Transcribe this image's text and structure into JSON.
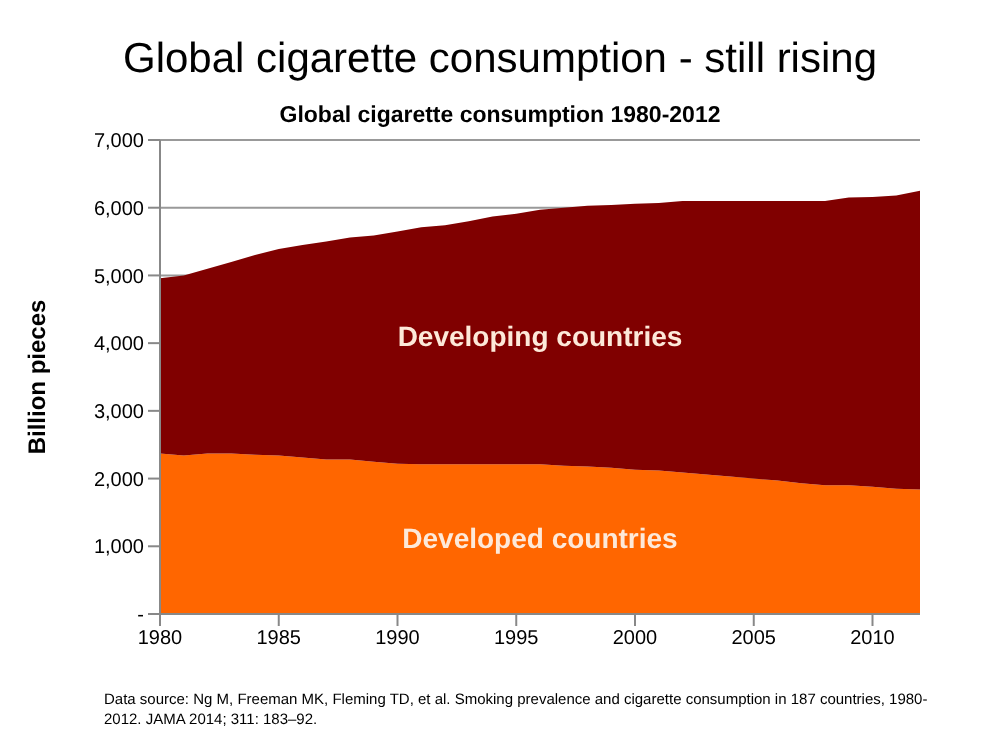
{
  "chart_data": {
    "type": "area",
    "title": "Global cigarette consumption - still rising",
    "subtitle": "Global cigarette consumption 1980-2012",
    "ylabel": "Billion pieces",
    "stacked": true,
    "legend": false,
    "grid": "y",
    "x": [
      1980,
      1981,
      1982,
      1983,
      1984,
      1985,
      1986,
      1987,
      1988,
      1989,
      1990,
      1991,
      1992,
      1993,
      1994,
      1995,
      1996,
      1997,
      1998,
      1999,
      2000,
      2001,
      2002,
      2003,
      2004,
      2005,
      2006,
      2007,
      2008,
      2009,
      2010,
      2011,
      2012
    ],
    "xlim": [
      1980,
      2012
    ],
    "xticks": [
      1980,
      1985,
      1990,
      1995,
      2000,
      2005,
      2010
    ],
    "ylim": [
      0,
      7000
    ],
    "yticks": [
      {
        "value": 0,
        "label": "-"
      },
      {
        "value": 1000,
        "label": "1,000"
      },
      {
        "value": 2000,
        "label": "2,000"
      },
      {
        "value": 3000,
        "label": "3,000"
      },
      {
        "value": 4000,
        "label": "4,000"
      },
      {
        "value": 5000,
        "label": "5,000"
      },
      {
        "value": 6000,
        "label": "6,000"
      },
      {
        "value": 7000,
        "label": "7,000"
      }
    ],
    "series": [
      {
        "name": "Developed countries",
        "color": "#ff6600",
        "values": [
          2370,
          2340,
          2370,
          2370,
          2350,
          2340,
          2310,
          2280,
          2280,
          2250,
          2220,
          2210,
          2210,
          2210,
          2210,
          2210,
          2210,
          2190,
          2180,
          2160,
          2130,
          2120,
          2090,
          2060,
          2030,
          2000,
          1970,
          1930,
          1900,
          1900,
          1880,
          1850,
          1840
        ]
      },
      {
        "name": "Developing countries",
        "color": "#800000",
        "values": [
          2590,
          2660,
          2730,
          2830,
          2950,
          3050,
          3140,
          3220,
          3280,
          3340,
          3430,
          3500,
          3530,
          3590,
          3660,
          3700,
          3760,
          3810,
          3850,
          3880,
          3930,
          3950,
          4010,
          4040,
          4070,
          4100,
          4130,
          4170,
          4200,
          4250,
          4280,
          4330,
          4410
        ]
      }
    ],
    "annotations": [
      "Data source: Ng M, Freeman MK, Fleming TD, et al. Smoking prevalence and cigarette consumption in 187 countries, 1980-2012. JAMA 2014; 311: 183–92."
    ]
  }
}
